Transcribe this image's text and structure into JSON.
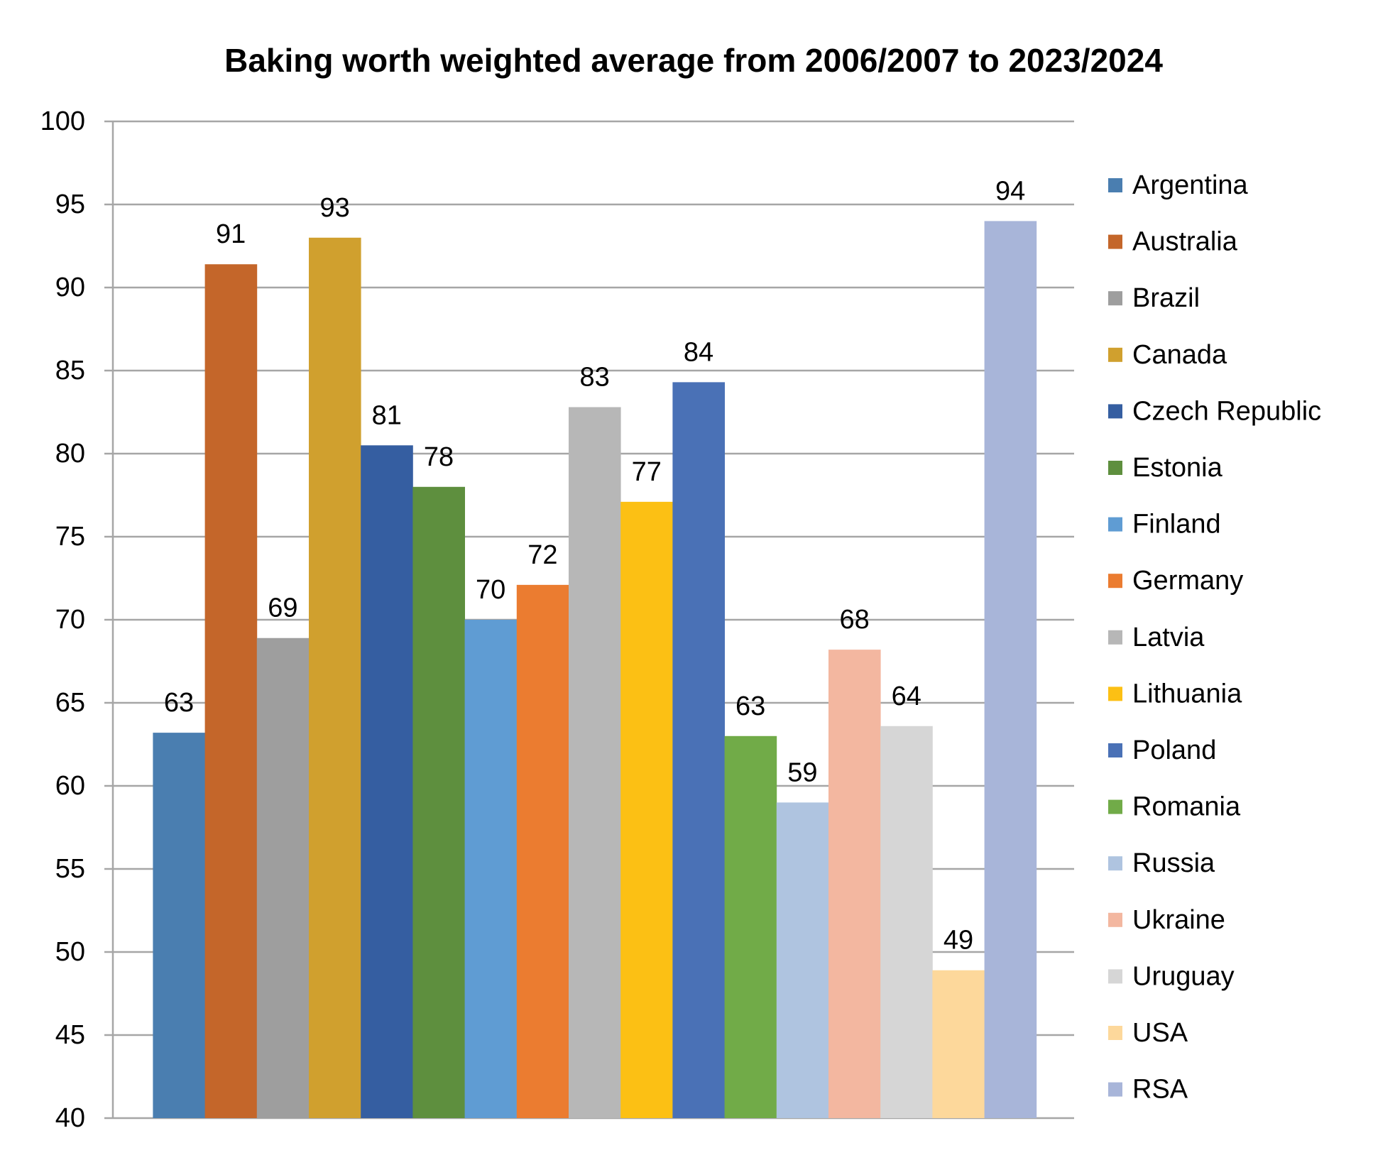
{
  "chart_data": {
    "type": "bar",
    "title": "Baking worth weighted average from 2006/2007 to 2023/2024",
    "xlabel": "",
    "ylabel": "",
    "ylim": [
      40,
      100
    ],
    "yticks": [
      40,
      45,
      50,
      55,
      60,
      65,
      70,
      75,
      80,
      85,
      90,
      95,
      100
    ],
    "grid": true,
    "legend_position": "right",
    "categories": [
      "Argentina",
      "Australia",
      "Brazil",
      "Canada",
      "Czech Republic",
      "Estonia",
      "Finland",
      "Germany",
      "Latvia",
      "Lithuania",
      "Poland",
      "Romania",
      "Russia",
      "Ukraine",
      "Uruguay",
      "USA",
      "RSA"
    ],
    "values": [
      63.2,
      91.4,
      68.9,
      93.0,
      80.5,
      78.0,
      70.0,
      72.1,
      82.8,
      77.1,
      84.3,
      63.0,
      59.0,
      68.2,
      63.6,
      48.9,
      94.0
    ],
    "data_labels": [
      "63",
      "91",
      "69",
      "93",
      "81",
      "78",
      "70",
      "72",
      "83",
      "77",
      "84",
      "63",
      "59",
      "68",
      "64",
      "49",
      "94"
    ],
    "colors": [
      "#4A7EB0",
      "#C4662A",
      "#9E9E9E",
      "#D0A02E",
      "#355EA1",
      "#5E8F3E",
      "#5F9CD3",
      "#EB7C30",
      "#B7B7B7",
      "#FCC014",
      "#4A71B6",
      "#71AB48",
      "#AFC4E0",
      "#F3B7A0",
      "#D6D6D6",
      "#FDD89B",
      "#A8B5D9"
    ]
  }
}
